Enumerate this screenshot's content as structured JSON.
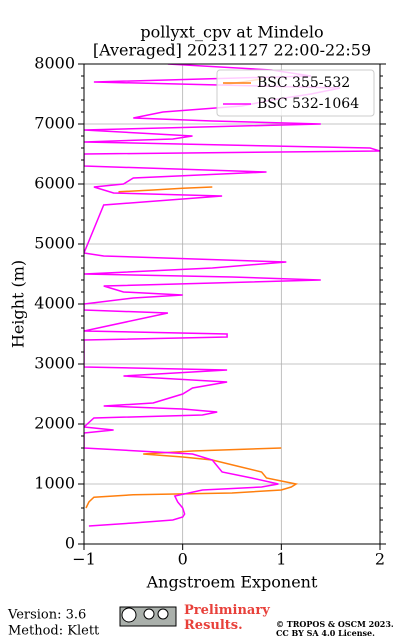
{
  "chart_data": {
    "type": "line",
    "title": "pollyxt_cpv at Mindelo",
    "subtitle": "[Averaged] 20231127 22:00-22:59",
    "xlabel": "Angstroem Exponent",
    "ylabel": "Height (m)",
    "xlim": [
      -1,
      2
    ],
    "xticks": [
      {
        "value": -1,
        "label": "−1"
      },
      0,
      1,
      2
    ],
    "ylim": [
      0,
      8000
    ],
    "yticks": [
      0,
      1000,
      2000,
      3000,
      4000,
      5000,
      6000,
      7000,
      8000
    ],
    "grid": true,
    "legend": "upper right",
    "series": [
      {
        "name": "BSC 355-532",
        "color": "#ff7f0e",
        "y": [
          600,
          700,
          780,
          820,
          850,
          900,
          950,
          1000,
          1050,
          1100,
          1200,
          1300,
          1400,
          1450,
          1500,
          1550,
          1600,
          null,
          5870,
          5900,
          5930,
          5950,
          null,
          7650,
          7700,
          7750
        ],
        "values": [
          -0.98,
          -0.95,
          -0.9,
          -0.5,
          0.5,
          1.0,
          1.1,
          1.15,
          1.0,
          0.85,
          0.8,
          0.55,
          0.3,
          0.0,
          -0.4,
          0.1,
          1.0,
          null,
          -0.65,
          -0.3,
          0.0,
          0.3,
          null,
          0.4,
          0.6,
          0.8
        ]
      },
      {
        "name": "BSC 532-1064",
        "color": "#ff00ff",
        "y": [
          300,
          350,
          400,
          450,
          500,
          600,
          700,
          800,
          900,
          950,
          1000,
          1100,
          1200,
          1300,
          1400,
          1500,
          1600,
          1850,
          1900,
          1950,
          2100,
          2150,
          2200,
          2250,
          2300,
          2350,
          2400,
          2500,
          2600,
          2700,
          2800,
          2900,
          2950,
          3400,
          3450,
          3500,
          3550,
          3850,
          3900,
          4000,
          4100,
          4150,
          4200,
          4300,
          4400,
          4450,
          4500,
          4600,
          4700,
          4800,
          4850,
          5650,
          5700,
          5800,
          5850,
          5950,
          6000,
          6100,
          6200,
          6300,
          6500,
          6550,
          6600,
          6700,
          6750,
          6800,
          6900,
          7000,
          7050,
          7100,
          7200,
          7300,
          7400,
          7500,
          7600,
          7700,
          7800,
          7900,
          8000
        ],
        "values": [
          -0.95,
          -0.5,
          -0.1,
          0.0,
          0.02,
          0.0,
          -0.05,
          -0.08,
          0.2,
          0.8,
          0.97,
          0.7,
          0.4,
          0.35,
          0.3,
          0.1,
          -1.0,
          -1.0,
          -0.7,
          -1.0,
          -0.9,
          0.2,
          0.35,
          0.0,
          -0.8,
          -0.3,
          -0.2,
          0.0,
          0.1,
          0.45,
          -0.6,
          0.45,
          -1.0,
          -1.0,
          0.45,
          0.45,
          -1.0,
          -0.15,
          -1.0,
          -1.0,
          -0.5,
          0.0,
          -0.6,
          -0.8,
          1.4,
          0.5,
          -1.0,
          0.3,
          1.05,
          -0.8,
          -1.0,
          -0.8,
          -0.4,
          0.4,
          -0.7,
          -0.9,
          -0.6,
          -0.5,
          0.85,
          -1.0,
          -1.0,
          2.0,
          1.9,
          -1.0,
          -0.1,
          0.1,
          -1.0,
          1.4,
          0.3,
          -0.5,
          -0.2,
          0.6,
          0.9,
          1.3,
          1.6,
          -0.9,
          1.3,
          0.9,
          -0.15
        ]
      }
    ]
  },
  "footer": {
    "version": "Version: 3.6",
    "method": "Method: Klett",
    "notice": "Preliminary Results.",
    "copyright": "© TROPOS & OSCM 2023.",
    "license": "CC BY SA 4.0 License."
  }
}
